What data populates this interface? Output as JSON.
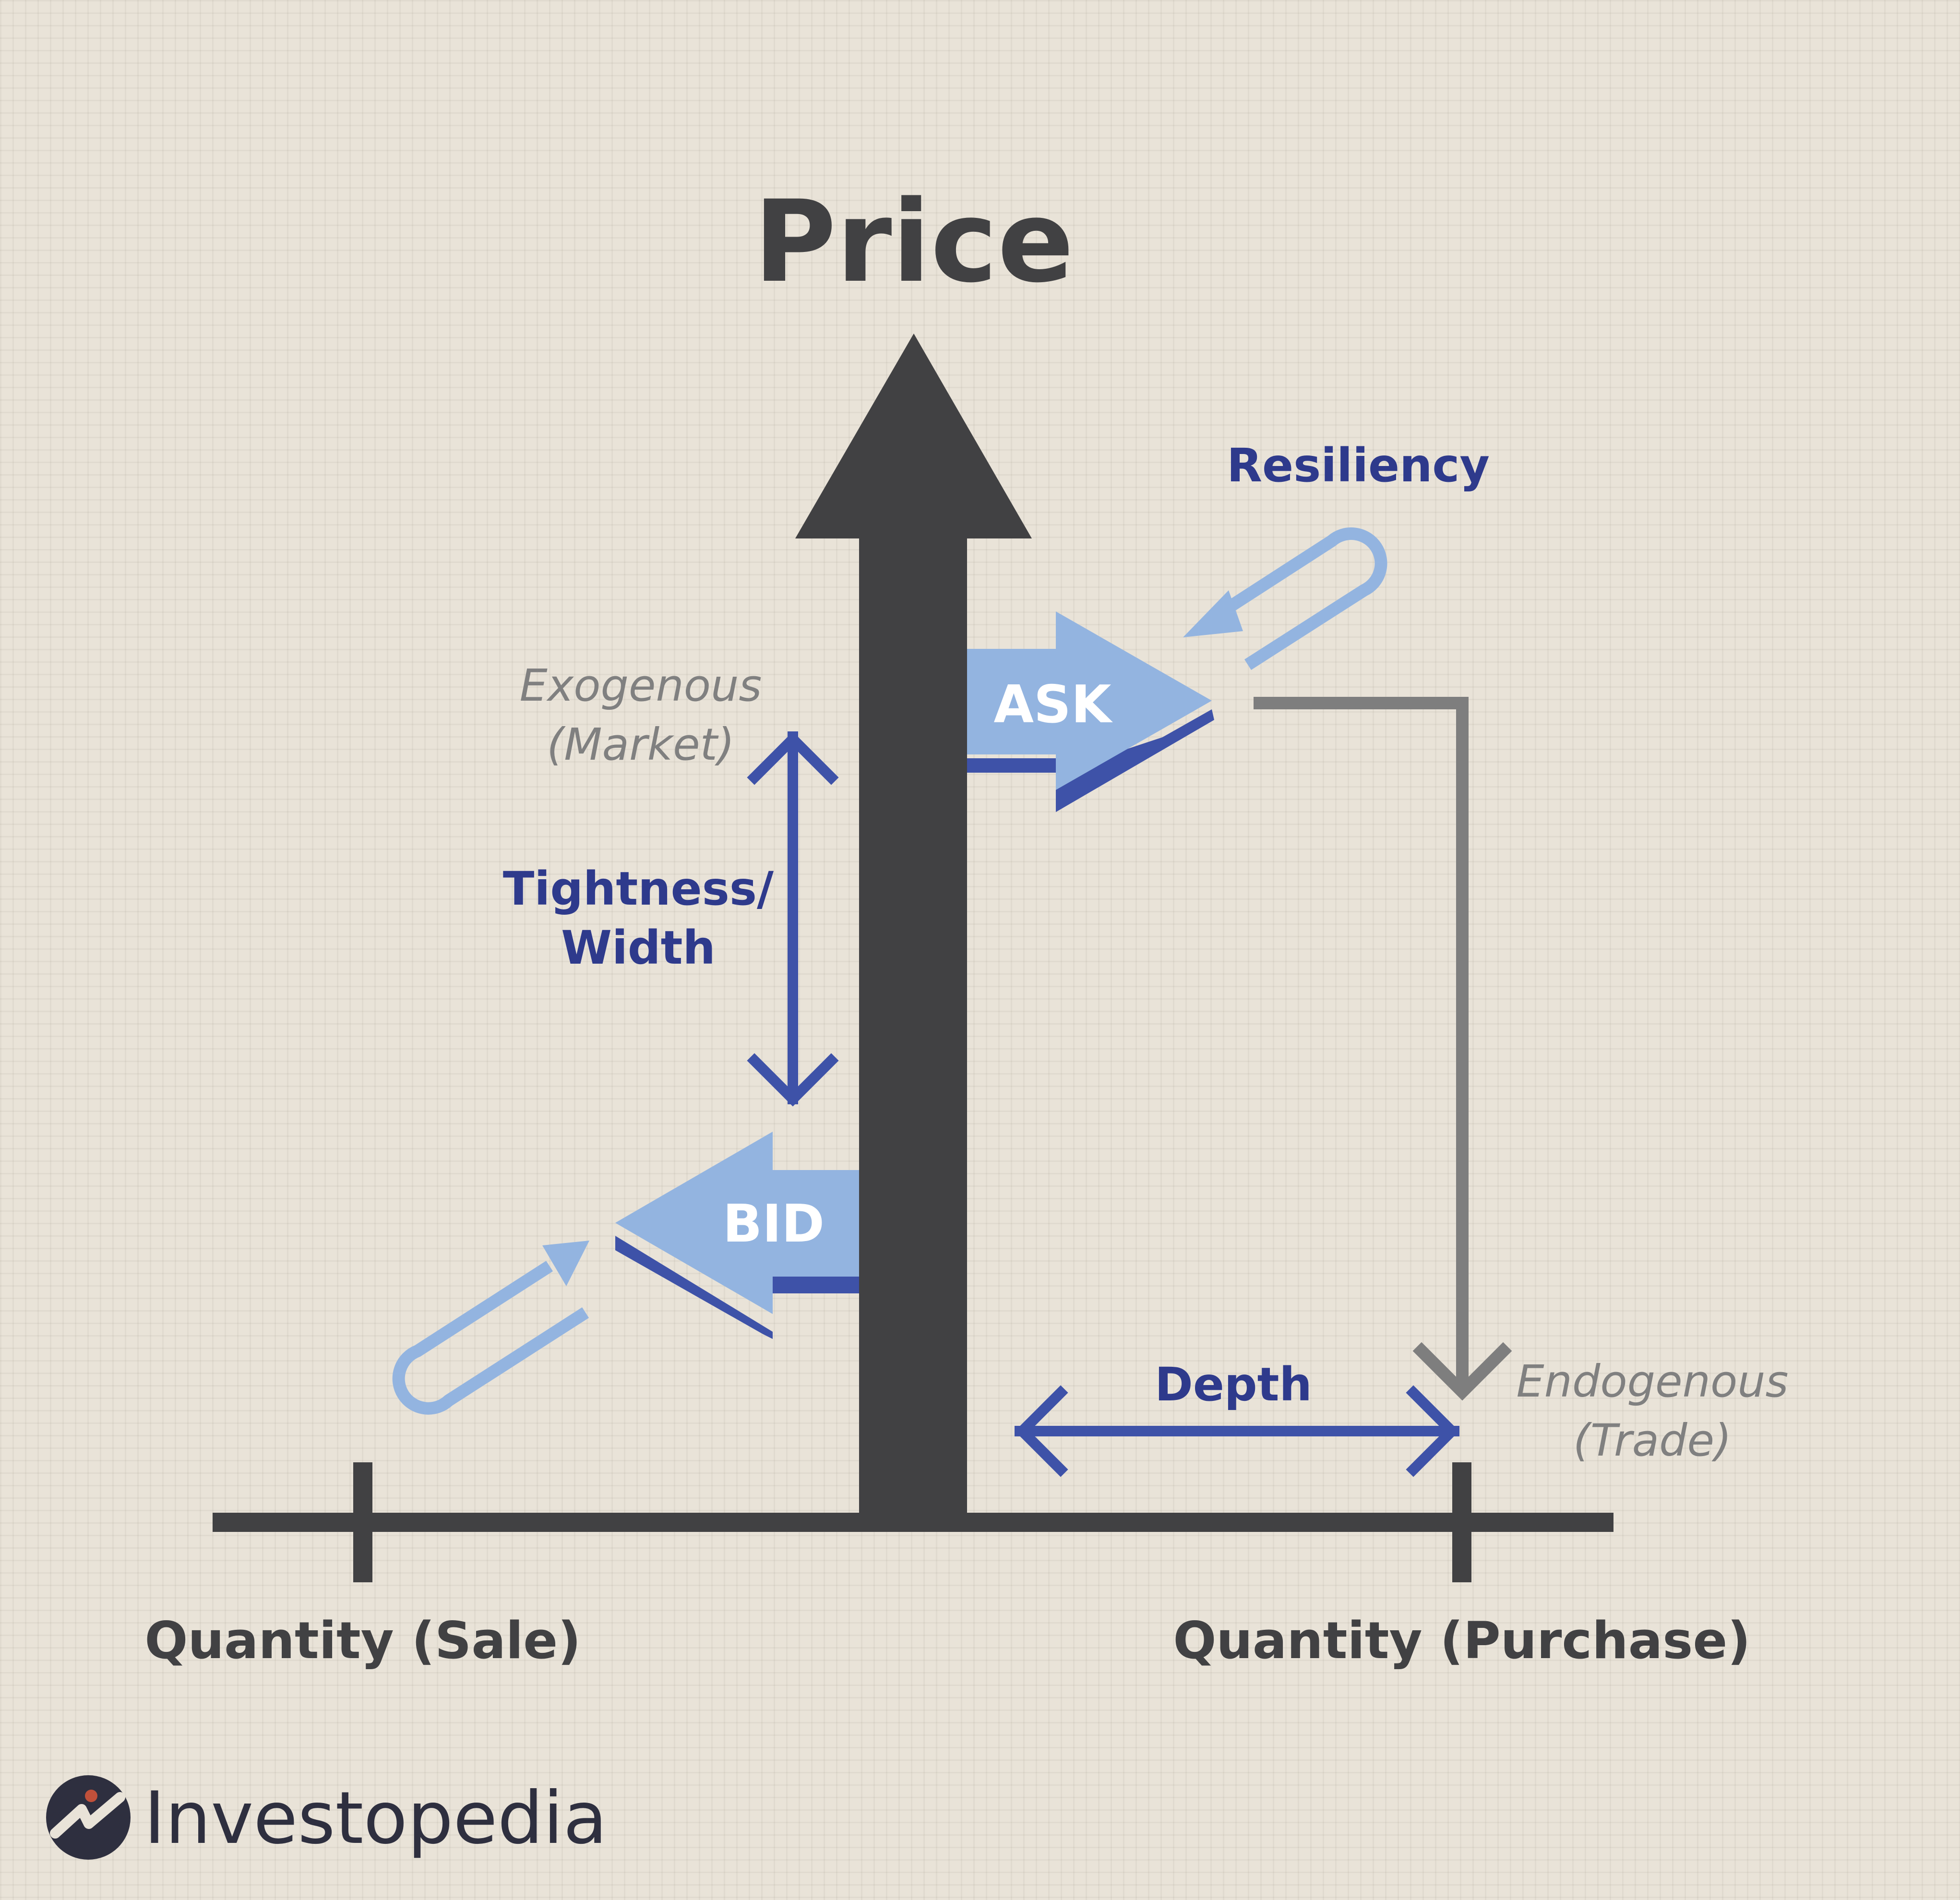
{
  "title": "Price",
  "labels": {
    "ask": "ASK",
    "bid": "BID",
    "resiliency": "Resiliency",
    "tightness_line1": "Tightness/",
    "tightness_line2": "Width",
    "depth": "Depth",
    "exogenous_line1": "Exogenous",
    "exogenous_line2": "(Market)",
    "endogenous_line1": "Endogenous",
    "endogenous_line2": "(Trade)",
    "quantity_sale": "Quantity (Sale)",
    "quantity_purchase": "Quantity (Purchase)"
  },
  "brand": {
    "name": "Investopedia"
  },
  "colors": {
    "dark": "#414143",
    "navy": "#2e3a8c",
    "light_blue": "#93b4e0",
    "blue_shadow": "#3e52a8",
    "gray": "#7e7e7e",
    "label_gray": "#808080",
    "background": "#e9e3d8",
    "logo_dot": "#c0503a"
  },
  "icons": {
    "price_axis": "up-arrow-icon",
    "ask": "right-arrow-icon",
    "bid": "left-arrow-icon",
    "tightness": "vertical-double-arrow-icon",
    "depth": "horizontal-double-arrow-icon",
    "resiliency": "hooked-arrow-icon",
    "endogenous": "elbow-arrow-icon",
    "logo": "investopedia-logo-icon"
  }
}
